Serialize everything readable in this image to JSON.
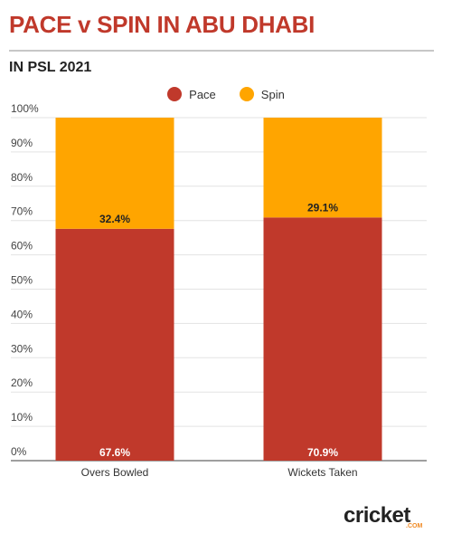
{
  "header": {
    "title": "PACE v SPIN IN ABU DHABI",
    "subtitle": "IN PSL 2021"
  },
  "brand": {
    "name": "cricket",
    "suffix": ".COM"
  },
  "chart_data": {
    "type": "bar",
    "stacked": true,
    "categories": [
      "Overs Bowled",
      "Wickets Taken"
    ],
    "series": [
      {
        "name": "Pace",
        "color": "#c0392b",
        "values": [
          67.6,
          70.9
        ],
        "labels": [
          "67.6%",
          "70.9%"
        ]
      },
      {
        "name": "Spin",
        "color": "#ffa500",
        "values": [
          32.4,
          29.1
        ],
        "labels": [
          "32.4%",
          "29.1%"
        ]
      }
    ],
    "yticks": [
      "0%",
      "10%",
      "20%",
      "30%",
      "40%",
      "50%",
      "60%",
      "70%",
      "80%",
      "90%",
      "100%"
    ],
    "ylim": [
      0,
      100
    ],
    "grid": true,
    "legend": "top-center"
  }
}
